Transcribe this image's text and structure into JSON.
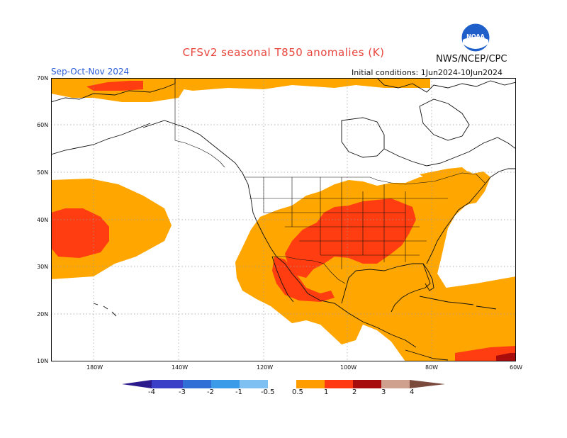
{
  "title": "CFSv2 seasonal T850 anomalies (K)",
  "season": "Sep-Oct-Nov 2024",
  "agency": "NWS/NCEP/CPC",
  "initial_conditions": "Initial conditions: 1Jun2024-10Jun2024",
  "logo_text": "NOAA",
  "lat_labels": [
    "70N",
    "60N",
    "50N",
    "40N",
    "30N",
    "20N",
    "10N"
  ],
  "lon_labels": [
    "180W",
    "140W",
    "120W",
    "100W",
    "80W",
    "60W"
  ],
  "colorbar": {
    "labels": [
      "-4",
      "-3",
      "-2",
      "-1",
      "-0.5",
      "0.5",
      "1",
      "2",
      "3",
      "4"
    ],
    "colors": [
      "#2b1a8c",
      "#3b3fc7",
      "#2f6fd6",
      "#3c9be8",
      "#7fc0f2",
      "#ffffff",
      "#ff9d00",
      "#ff3a12",
      "#a80d0d",
      "#cfa08e",
      "#7a4a3c"
    ]
  },
  "anomaly_colors": {
    "0.5-1": "#ffa600",
    "1-2": "#ff3d10",
    "2-3": "#a80c0c"
  }
}
